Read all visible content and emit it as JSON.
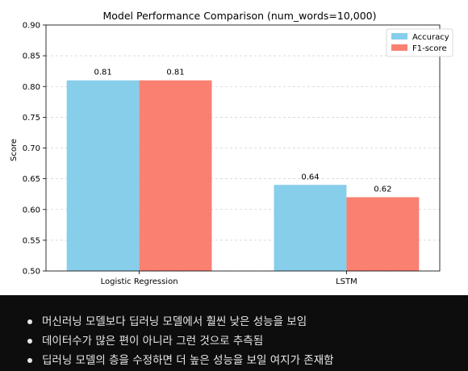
{
  "chart_data": {
    "type": "bar",
    "title": "Model Performance Comparison (num_words=10,000)",
    "xlabel": "",
    "ylabel": "Score",
    "categories": [
      "Logistic Regression",
      "LSTM"
    ],
    "series": [
      {
        "name": "Accuracy",
        "values": [
          0.81,
          0.64
        ],
        "labels": [
          "0.81",
          "0.64"
        ],
        "color": "#87ceeb"
      },
      {
        "name": "F1-score",
        "values": [
          0.81,
          0.62
        ],
        "labels": [
          "0.81",
          "0.62"
        ],
        "color": "#fa8072"
      }
    ],
    "ylim": [
      0.5,
      0.9
    ],
    "yticks": [
      0.5,
      0.55,
      0.6,
      0.65,
      0.7,
      0.75,
      0.8,
      0.85,
      0.9
    ],
    "ytick_labels": [
      "0.50",
      "0.55",
      "0.60",
      "0.65",
      "0.70",
      "0.75",
      "0.80",
      "0.85",
      "0.90"
    ],
    "grid": "y-dashed",
    "legend": "top-right"
  },
  "notes": [
    "머신러닝 모델보다 딥러닝 모델에서 훨씬 낮은 성능을 보임",
    "데이터수가 많은 편이 아니라 그런 것으로 추측됨",
    "딥러닝 모델의 층을 수정하면 더 높은 성능을 보일 여지가 존재함"
  ]
}
